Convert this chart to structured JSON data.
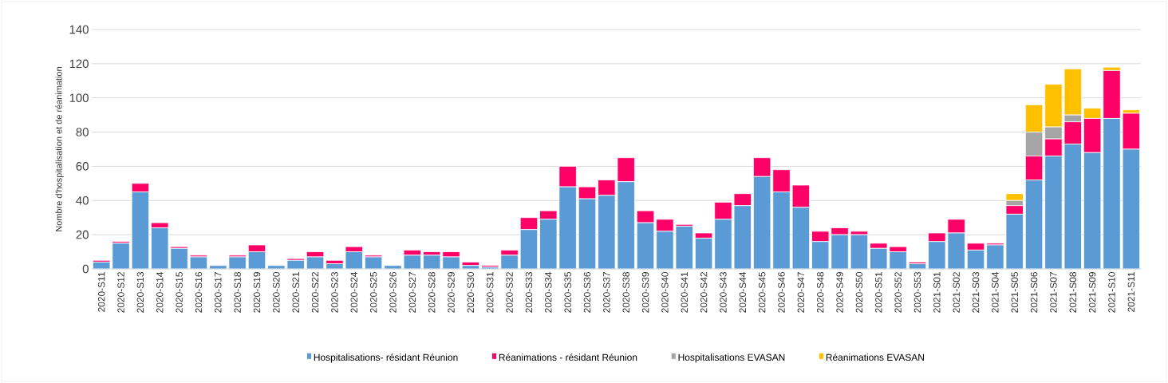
{
  "chart_data": {
    "type": "bar",
    "stacked": true,
    "ylabel": "Nombre d'hospitalisation et de réanimation",
    "categories": [
      "2020-S11",
      "2020-S12",
      "2020-S13",
      "2020-S14",
      "2020-S15",
      "2020-S16",
      "2020-S17",
      "2020-S18",
      "2020-S19",
      "2020-S20",
      "2020-S21",
      "2020-S22",
      "2020-S23",
      "2020-S24",
      "2020-S25",
      "2020-S26",
      "2020-S27",
      "2020-S28",
      "2020-S29",
      "2020-S30",
      "2020-S31",
      "2020-S32",
      "2020-S33",
      "2020-S34",
      "2020-S35",
      "2020-S36",
      "2020-S37",
      "2020-S38",
      "2020-S39",
      "2020-S40",
      "2020-S41",
      "2020-S42",
      "2020-S43",
      "2020-S44",
      "2020-S45",
      "2020-S46",
      "2020-S47",
      "2020-S48",
      "2020-S49",
      "2020-S50",
      "2020-S51",
      "2020-S52",
      "2020-S53",
      "2021-S01",
      "2021-S02",
      "2021-S03",
      "2021-S04",
      "2021-S05",
      "2021-S06",
      "2021-S07",
      "2021-S08",
      "2021-S09",
      "2021-S10",
      "2021-S11"
    ],
    "series": [
      {
        "name": "Hospitalisations- résidant Réunion",
        "color": "#5b9bd5",
        "values": [
          4,
          15,
          45,
          24,
          12,
          7,
          2,
          7,
          10,
          2,
          5,
          7,
          3,
          10,
          7,
          2,
          8,
          8,
          7,
          2,
          1,
          8,
          23,
          29,
          48,
          41,
          43,
          51,
          27,
          22,
          25,
          18,
          29,
          37,
          54,
          45,
          36,
          16,
          20,
          20,
          12,
          10,
          3,
          16,
          21,
          11,
          14,
          32,
          52,
          66,
          73,
          68,
          88,
          70
        ]
      },
      {
        "name": "Réanimations - résidant Réunion",
        "color": "#ff0066",
        "values": [
          1,
          1,
          5,
          3,
          1,
          1,
          0,
          1,
          4,
          0,
          1,
          3,
          2,
          3,
          1,
          0,
          3,
          2,
          3,
          2,
          1,
          3,
          7,
          5,
          12,
          7,
          9,
          14,
          7,
          7,
          1,
          3,
          10,
          7,
          11,
          13,
          13,
          6,
          4,
          2,
          3,
          3,
          1,
          5,
          8,
          4,
          1,
          5,
          14,
          10,
          13,
          20,
          28,
          21
        ]
      },
      {
        "name": "Hospitalisations  EVASAN",
        "color": "#a5a5a5",
        "values": [
          0,
          0,
          0,
          0,
          0,
          0,
          0,
          0,
          0,
          0,
          0,
          0,
          0,
          0,
          0,
          0,
          0,
          0,
          0,
          0,
          0,
          0,
          0,
          0,
          0,
          0,
          0,
          0,
          0,
          0,
          0,
          0,
          0,
          0,
          0,
          0,
          0,
          0,
          0,
          0,
          0,
          0,
          0,
          0,
          0,
          0,
          0,
          3,
          14,
          7,
          4,
          0,
          0,
          0
        ]
      },
      {
        "name": "Réanimations EVASAN",
        "color": "#ffc000",
        "values": [
          0,
          0,
          0,
          0,
          0,
          0,
          0,
          0,
          0,
          0,
          0,
          0,
          0,
          0,
          0,
          0,
          0,
          0,
          0,
          0,
          0,
          0,
          0,
          0,
          0,
          0,
          0,
          0,
          0,
          0,
          0,
          0,
          0,
          0,
          0,
          0,
          0,
          0,
          0,
          0,
          0,
          0,
          0,
          0,
          0,
          0,
          0,
          4,
          16,
          25,
          27,
          6,
          2,
          2
        ]
      }
    ],
    "ylim": [
      0,
      140
    ],
    "yticks": [
      0,
      20,
      40,
      60,
      80,
      100,
      120,
      140
    ],
    "grid": "y",
    "legend": "bottom"
  }
}
